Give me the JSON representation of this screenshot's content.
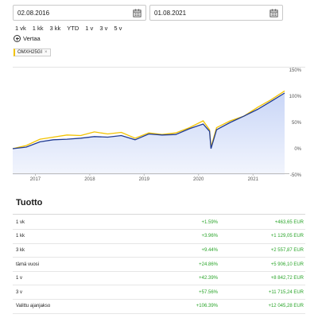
{
  "date_range": {
    "start": "02.08.2016",
    "end": "01.08.2021"
  },
  "quick_ranges": [
    "1 vk",
    "1 kk",
    "3 kk",
    "YTD",
    "1 v",
    "3 v",
    "5 v"
  ],
  "compare": {
    "label": "Vertaa",
    "chips": [
      {
        "label": "OMXH25GI",
        "remove": "×"
      }
    ]
  },
  "colors": {
    "portfolio_line": "#1f3a93",
    "benchmark_line": "#f2c200",
    "area_fill": "#dfe7fb",
    "positive": "#2aa52a"
  },
  "icons": [
    "calendar-icon",
    "plus-circle-icon",
    "close-icon"
  ],
  "chart_data": {
    "type": "line",
    "x_ticks": [
      "2017",
      "2018",
      "2019",
      "2020",
      "2021"
    ],
    "y_ticks": [
      "150%",
      "100%",
      "50%",
      "0%",
      "-50%"
    ],
    "ylim": [
      -50,
      150
    ],
    "xlim": [
      "2016-08-02",
      "2021-08-01"
    ],
    "grid": false,
    "series": [
      {
        "x": [
          "2016-08-02",
          "2016-11-01",
          "2017-02-01",
          "2017-05-01",
          "2017-08-01",
          "2017-11-01",
          "2018-02-01",
          "2018-05-01",
          "2018-08-01",
          "2018-11-01",
          "2019-02-01",
          "2019-05-01",
          "2019-08-01",
          "2019-11-01",
          "2020-02-01",
          "2020-03-15",
          "2020-03-25",
          "2020-05-01",
          "2020-08-01",
          "2020-11-01",
          "2021-02-01",
          "2021-05-01",
          "2021-08-01"
        ],
        "values": [
          0,
          3,
          13,
          17,
          18,
          20,
          23,
          22,
          25,
          17,
          28,
          26,
          27,
          38,
          47,
          33,
          0,
          36,
          50,
          62,
          75,
          90,
          106
        ]
      },
      {
        "x": [
          "2016-08-02",
          "2016-11-01",
          "2017-02-01",
          "2017-05-01",
          "2017-08-01",
          "2017-11-01",
          "2018-02-01",
          "2018-05-01",
          "2018-08-01",
          "2018-11-01",
          "2019-02-01",
          "2019-05-01",
          "2019-08-01",
          "2019-11-01",
          "2020-02-01",
          "2020-03-15",
          "2020-03-25",
          "2020-05-01",
          "2020-08-01",
          "2020-11-01",
          "2021-02-01",
          "2021-05-01",
          "2021-08-01"
        ],
        "values": [
          0,
          6,
          18,
          22,
          26,
          25,
          32,
          28,
          31,
          20,
          30,
          27,
          30,
          40,
          53,
          36,
          3,
          40,
          53,
          62,
          79,
          93,
          110
        ]
      }
    ]
  },
  "returns_section": {
    "title": "Tuotto",
    "rows": [
      {
        "period": "1 vk",
        "pct": "+1.59%",
        "eur": "+463,65 EUR"
      },
      {
        "period": "1 kk",
        "pct": "+3.96%",
        "eur": "+1 129,05 EUR"
      },
      {
        "period": "3 kk",
        "pct": "+9.44%",
        "eur": "+2 557,87 EUR"
      },
      {
        "period": "tämä vuosi",
        "pct": "+24.86%",
        "eur": "+5 906,10 EUR"
      },
      {
        "period": "1 v",
        "pct": "+42.39%",
        "eur": "+8 842,72 EUR"
      },
      {
        "period": "3 v",
        "pct": "+57.56%",
        "eur": "+11 715,24 EUR"
      },
      {
        "period": "Valittu ajanjakso",
        "pct": "+106.39%",
        "eur": "+12 045,28 EUR"
      }
    ]
  }
}
